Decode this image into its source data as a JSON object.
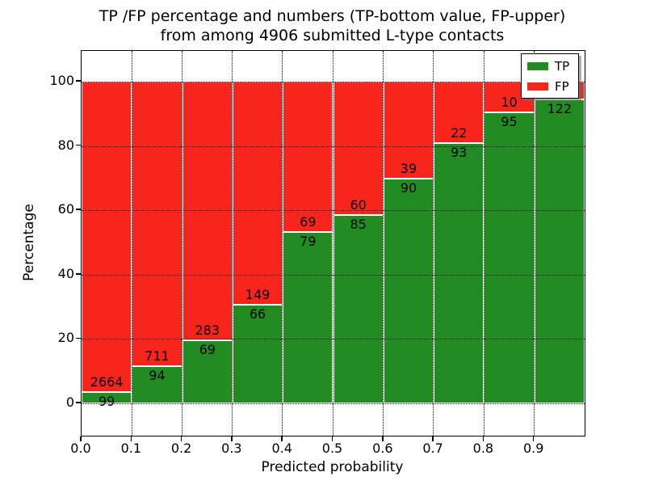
{
  "title": {
    "line1": "TP /FP percentage and numbers (TP-bottom value, FP-upper)",
    "line2": "from among 4906 submitted L-type contacts"
  },
  "axes": {
    "xlabel": "Predicted probability",
    "ylabel": "Percentage",
    "x_ticks": [
      "0.0",
      "0.1",
      "0.2",
      "0.3",
      "0.4",
      "0.5",
      "0.6",
      "0.7",
      "0.8",
      "0.9"
    ],
    "y_ticks": [
      "0",
      "20",
      "40",
      "60",
      "80",
      "100"
    ]
  },
  "legend": {
    "items": [
      {
        "label": "TP",
        "color": "#228b22"
      },
      {
        "label": "FP",
        "color": "#f8251d"
      }
    ]
  },
  "chart_data": {
    "type": "bar",
    "stacked": true,
    "title": "TP /FP percentage and numbers (TP-bottom value, FP-upper) from among 4906 submitted L-type contacts",
    "xlabel": "Predicted probability",
    "ylabel": "Percentage",
    "total_contacts": 4906,
    "categories": [
      "0.0-0.1",
      "0.1-0.2",
      "0.2-0.3",
      "0.3-0.4",
      "0.4-0.5",
      "0.5-0.6",
      "0.6-0.7",
      "0.7-0.8",
      "0.8-0.9",
      "0.9-1.0"
    ],
    "series": [
      {
        "name": "TP",
        "color": "#228b22",
        "counts": [
          99,
          94,
          69,
          66,
          79,
          85,
          90,
          93,
          95,
          122
        ],
        "pct": [
          3.58,
          11.68,
          19.6,
          30.7,
          53.38,
          58.62,
          69.77,
          80.87,
          90.48,
          94.57
        ]
      },
      {
        "name": "FP",
        "color": "#f8251d",
        "counts": [
          2664,
          711,
          283,
          149,
          69,
          60,
          39,
          22,
          10,
          null
        ],
        "pct": [
          96.42,
          88.32,
          80.4,
          69.3,
          46.62,
          41.38,
          30.23,
          19.13,
          9.52,
          5.43
        ]
      }
    ],
    "ylim": [
      -10,
      110
    ],
    "xlim": [
      0,
      1.0
    ],
    "grid": true,
    "grid_style": "dotted",
    "legend_position": "upper right"
  }
}
